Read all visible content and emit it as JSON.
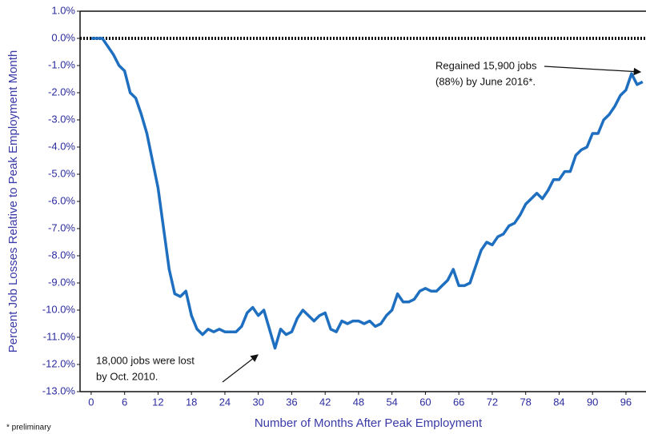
{
  "chart_data": {
    "type": "line",
    "y_label": "Percent Job Losses Relative to Peak Employment Month",
    "x_label": "Number of Months After Peak Employment",
    "footnote": "* preliminary",
    "annotations": [
      [
        "Regained 15,900 jobs",
        "(88%) by June 2016*."
      ],
      [
        "18,000 jobs were lost",
        "by Oct. 2010."
      ]
    ],
    "x": [
      0,
      1,
      2,
      3,
      4,
      5,
      6,
      7,
      8,
      9,
      10,
      11,
      12,
      13,
      14,
      15,
      16,
      17,
      18,
      19,
      20,
      21,
      22,
      23,
      24,
      25,
      26,
      27,
      28,
      29,
      30,
      31,
      32,
      33,
      34,
      35,
      36,
      37,
      38,
      39,
      40,
      41,
      42,
      43,
      44,
      45,
      46,
      47,
      48,
      49,
      50,
      51,
      52,
      53,
      54,
      55,
      56,
      57,
      58,
      59,
      60,
      61,
      62,
      63,
      64,
      65,
      66,
      67,
      68,
      69,
      70,
      71,
      72,
      73,
      74,
      75,
      76,
      77,
      78,
      79,
      80,
      81,
      82,
      83,
      84,
      85,
      86,
      87,
      88,
      89,
      90,
      91,
      92,
      93,
      94,
      95,
      96,
      97,
      98,
      99
    ],
    "series": [
      {
        "color": "#1f6fc0",
        "values": [
          0,
          0,
          0,
          -0.3,
          -0.6,
          -1.0,
          -1.2,
          -2.0,
          -2.2,
          -2.8,
          -3.5,
          -4.5,
          -5.5,
          -7.0,
          -8.5,
          -9.4,
          -9.5,
          -9.3,
          -10.2,
          -10.7,
          -10.9,
          -10.7,
          -10.8,
          -10.7,
          -10.8,
          -10.8,
          -10.8,
          -10.6,
          -10.1,
          -9.9,
          -10.2,
          -10.0,
          -10.7,
          -11.4,
          -10.7,
          -10.9,
          -10.8,
          -10.3,
          -10.0,
          -10.2,
          -10.4,
          -10.2,
          -10.1,
          -10.7,
          -10.8,
          -10.4,
          -10.5,
          -10.4,
          -10.4,
          -10.5,
          -10.4,
          -10.6,
          -10.5,
          -10.2,
          -10.0,
          -9.4,
          -9.7,
          -9.7,
          -9.6,
          -9.3,
          -9.2,
          -9.3,
          -9.3,
          -9.1,
          -8.9,
          -8.5,
          -9.1,
          -9.1,
          -9.0,
          -8.4,
          -7.8,
          -7.5,
          -7.6,
          -7.3,
          -7.2,
          -6.9,
          -6.8,
          -6.5,
          -6.1,
          -5.9,
          -5.7,
          -5.9,
          -5.6,
          -5.2,
          -5.2,
          -4.9,
          -4.9,
          -4.3,
          -4.1,
          -4.0,
          -3.5,
          -3.5,
          -3.0,
          -2.8,
          -2.5,
          -2.1,
          -1.9,
          -1.3,
          -1.7,
          -1.6
        ]
      }
    ],
    "xlim": [
      -2,
      99.6
    ],
    "ylim": [
      -13,
      1
    ],
    "xticks": [
      0,
      6,
      12,
      18,
      24,
      30,
      36,
      42,
      48,
      54,
      60,
      66,
      72,
      78,
      84,
      90,
      96
    ],
    "yticks": [
      {
        "value": 1,
        "label": "1.0%"
      },
      {
        "value": 0,
        "label": "0.0%"
      },
      {
        "value": -1,
        "label": "-1.0%"
      },
      {
        "value": -2,
        "label": "-2.0%"
      },
      {
        "value": -3,
        "label": "-3.0%"
      },
      {
        "value": -4,
        "label": "-4.0%"
      },
      {
        "value": -5,
        "label": "-5.0%"
      },
      {
        "value": -6,
        "label": "-6.0%"
      },
      {
        "value": -7,
        "label": "-7.0%"
      },
      {
        "value": -8,
        "label": "-8.0%"
      },
      {
        "value": -9,
        "label": "-9.0%"
      },
      {
        "value": -10,
        "label": "-10.0%"
      },
      {
        "value": -11,
        "label": "-11.0%"
      },
      {
        "value": -12,
        "label": "-12.0%"
      },
      {
        "value": -13,
        "label": "-13.0%"
      }
    ]
  }
}
